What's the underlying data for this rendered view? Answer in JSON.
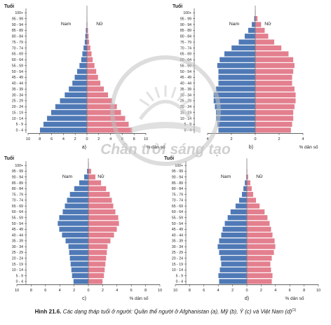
{
  "colors": {
    "male": "#4f79b6",
    "female": "#e37f8e",
    "axis": "#333333"
  },
  "watermark": {
    "text": "Chân trời sáng tạo",
    "color": "#9a9a9a"
  },
  "chart_data": [
    {
      "type": "bar",
      "panel_label": "a)",
      "ylabel": "Tuổi",
      "xlabel": "% dân số",
      "male_label": "Nam",
      "female_label": "Nữ",
      "xlim": [
        -10,
        10
      ],
      "xticks": [
        "10",
        "8",
        "6",
        "4",
        "2",
        "0",
        "2",
        "4",
        "6",
        "8",
        "10"
      ],
      "categories": [
        "0 - 4",
        "5 - 9",
        "10 - 14",
        "15 - 19",
        "20 - 24",
        "25 - 29",
        "30 - 34",
        "35 - 39",
        "40 - 44",
        "45 - 49",
        "50 - 54",
        "55 - 59",
        "60 - 64",
        "65 - 69",
        "70 - 74",
        "75 - 79",
        "80 - 84",
        "85 - 89",
        "90 - 94",
        "95 - 99",
        "100+"
      ],
      "series": [
        {
          "name": "Nam",
          "values": [
            8.0,
            7.4,
            6.8,
            6.1,
            5.4,
            4.6,
            3.8,
            3.1,
            2.5,
            2.1,
            1.7,
            1.3,
            1.0,
            0.8,
            0.6,
            0.4,
            0.3,
            0.2,
            0.1,
            0.05,
            0.02
          ]
        },
        {
          "name": "Nữ",
          "values": [
            7.7,
            7.1,
            6.5,
            5.8,
            5.1,
            4.3,
            3.6,
            2.9,
            2.3,
            1.9,
            1.6,
            1.3,
            1.0,
            0.8,
            0.6,
            0.4,
            0.3,
            0.2,
            0.1,
            0.05,
            0.02
          ]
        }
      ]
    },
    {
      "type": "bar",
      "panel_label": "b)",
      "ylabel": "Tuổi",
      "xlabel": "% dân số",
      "male_label": "Nam",
      "female_label": "Nữ",
      "xlim": [
        -4,
        4
      ],
      "xticks": [
        "4",
        "2",
        "0",
        "2",
        "4"
      ],
      "categories": [
        "0 - 4",
        "5 - 9",
        "10 - 14",
        "15 - 19",
        "20 - 24",
        "25 - 29",
        "30 - 34",
        "35 - 39",
        "40 - 44",
        "45 - 49",
        "50 - 54",
        "55 - 59",
        "60 - 64",
        "65 - 69",
        "70 - 74",
        "75 - 79",
        "80 - 84",
        "85 - 89",
        "90 - 94",
        "95 - 99",
        "100+"
      ],
      "series": [
        {
          "name": "Nam",
          "values": [
            3.1,
            3.2,
            3.3,
            3.3,
            3.4,
            3.5,
            3.5,
            3.3,
            3.1,
            3.1,
            3.1,
            3.2,
            3.0,
            2.6,
            2.0,
            1.4,
            0.9,
            0.6,
            0.3,
            0.1,
            0.02
          ]
        },
        {
          "name": "Nữ",
          "values": [
            3.0,
            3.1,
            3.2,
            3.2,
            3.3,
            3.4,
            3.4,
            3.3,
            3.1,
            3.1,
            3.2,
            3.3,
            3.2,
            2.8,
            2.2,
            1.6,
            1.1,
            0.8,
            0.5,
            0.2,
            0.04
          ]
        }
      ]
    },
    {
      "type": "bar",
      "panel_label": "c)",
      "ylabel": "Tuổi",
      "xlabel": "% dân số",
      "male_label": "Nam",
      "female_label": "Nữ",
      "xlim": [
        -10,
        10
      ],
      "xticks": [
        "10",
        "8",
        "6",
        "4",
        "2",
        "0",
        "2",
        "4",
        "6",
        "8",
        "10"
      ],
      "categories": [
        "0 - 4",
        "5 - 9",
        "10 - 14",
        "15 - 19",
        "20 - 24",
        "25 - 29",
        "30 - 34",
        "35 - 39",
        "40 - 44",
        "45 - 49",
        "50 - 54",
        "55 - 59",
        "60 - 64",
        "65 - 69",
        "70 - 74",
        "75 - 79",
        "80 - 84",
        "85 - 89",
        "90 - 94",
        "95 - 99",
        "100+"
      ],
      "series": [
        {
          "name": "Nam",
          "values": [
            2.1,
            2.3,
            2.4,
            2.5,
            2.6,
            2.7,
            2.8,
            3.2,
            3.7,
            4.1,
            4.3,
            4.1,
            3.6,
            3.3,
            3.0,
            2.6,
            2.0,
            1.3,
            0.6,
            0.2,
            0.05
          ]
        },
        {
          "name": "Nữ",
          "values": [
            2.0,
            2.2,
            2.3,
            2.4,
            2.5,
            2.6,
            2.7,
            3.1,
            3.6,
            4.0,
            4.3,
            4.2,
            3.8,
            3.5,
            3.3,
            3.0,
            2.5,
            1.8,
            1.0,
            0.4,
            0.08
          ]
        }
      ]
    },
    {
      "type": "bar",
      "panel_label": "d)",
      "ylabel": "Tuổi",
      "xlabel": "% dân số",
      "male_label": "Nam",
      "female_label": "Nữ",
      "xlim": [
        -10,
        10
      ],
      "xticks": [
        "10",
        "8",
        "6",
        "4",
        "2",
        "0",
        "2",
        "4",
        "6",
        "8",
        "10"
      ],
      "categories": [
        "0 - 4",
        "5 - 9",
        "10 - 14",
        "15 - 19",
        "20 - 24",
        "25 - 29",
        "30 - 34",
        "35 - 39",
        "40 - 44",
        "45 - 49",
        "50 - 54",
        "55 - 59",
        "60 - 64",
        "65 - 69",
        "70 - 74",
        "75 - 79",
        "80 - 84",
        "85 - 89",
        "90 - 94",
        "95 - 99",
        "100+"
      ],
      "series": [
        {
          "name": "Nam",
          "values": [
            3.9,
            4.0,
            3.8,
            3.6,
            3.7,
            3.9,
            4.1,
            3.9,
            3.6,
            3.4,
            3.1,
            2.7,
            2.3,
            1.6,
            1.1,
            0.7,
            0.5,
            0.3,
            0.1,
            0.05,
            0.01
          ]
        },
        {
          "name": "Nữ",
          "values": [
            3.5,
            3.6,
            3.4,
            3.3,
            3.5,
            3.8,
            4.0,
            3.9,
            3.6,
            3.4,
            3.2,
            2.9,
            2.5,
            1.8,
            1.3,
            0.9,
            0.7,
            0.5,
            0.2,
            0.08,
            0.02
          ]
        }
      ]
    }
  ],
  "caption": {
    "number": "Hình 21.6.",
    "text": "Các dạng tháp tuổi ở người: Quần thể người ở Afghanistan (a), Mỹ (b), Ý (c) và Việt Nam (d)",
    "note": "(1)"
  }
}
